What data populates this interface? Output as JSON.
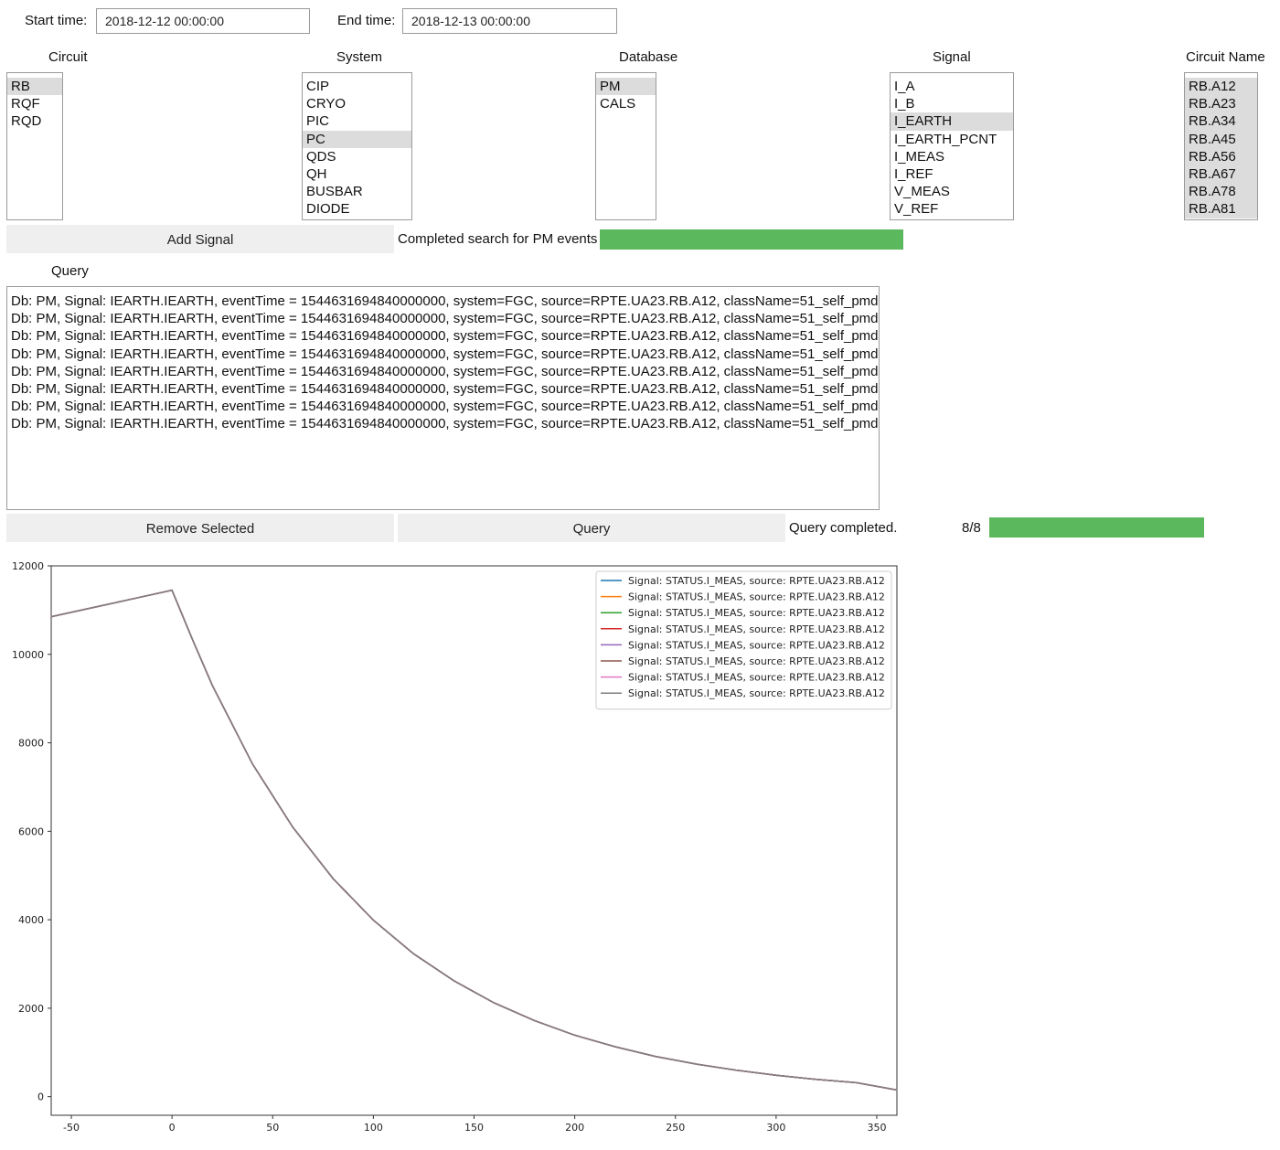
{
  "time_range": {
    "start_label": "Start time:",
    "start_value": "2018-12-12 00:00:00",
    "end_label": "End time:",
    "end_value": "2018-12-13 00:00:00"
  },
  "circuit": {
    "label": "Circuit",
    "options": [
      "RB",
      "RQF",
      "RQD"
    ],
    "selected": [
      0
    ]
  },
  "system": {
    "label": "System",
    "options": [
      "CIP",
      "CRYO",
      "PIC",
      "PC",
      "QDS",
      "QH",
      "BUSBAR",
      "DIODE"
    ],
    "selected": [
      3
    ]
  },
  "database": {
    "label": "Database",
    "options": [
      "PM",
      "CALS"
    ],
    "selected": [
      0
    ]
  },
  "signal": {
    "label": "Signal",
    "options": [
      "I_A",
      "I_B",
      "I_EARTH",
      "I_EARTH_PCNT",
      "I_MEAS",
      "I_REF",
      "V_MEAS",
      "V_REF"
    ],
    "selected": [
      2
    ]
  },
  "circuit_name": {
    "label": "Circuit Name",
    "options": [
      "RB.A12",
      "RB.A23",
      "RB.A34",
      "RB.A45",
      "RB.A56",
      "RB.A67",
      "RB.A78",
      "RB.A81"
    ],
    "selected": [
      0,
      1,
      2,
      3,
      4,
      5,
      6,
      7
    ]
  },
  "add_signal": {
    "label": "Add Signal"
  },
  "search_status": {
    "text": "Completed search for PM events",
    "progress": 1.0,
    "color": "#5cb85c"
  },
  "query_section": {
    "label": "Query",
    "lines": [
      "Db: PM, Signal: IEARTH.IEARTH, eventTime = 1544631694840000000, system=FGC, source=RPTE.UA23.RB.A12, className=51_self_pmd",
      "Db: PM, Signal: IEARTH.IEARTH, eventTime = 1544631694840000000, system=FGC, source=RPTE.UA23.RB.A12, className=51_self_pmd",
      "Db: PM, Signal: IEARTH.IEARTH, eventTime = 1544631694840000000, system=FGC, source=RPTE.UA23.RB.A12, className=51_self_pmd",
      "Db: PM, Signal: IEARTH.IEARTH, eventTime = 1544631694840000000, system=FGC, source=RPTE.UA23.RB.A12, className=51_self_pmd",
      "Db: PM, Signal: IEARTH.IEARTH, eventTime = 1544631694840000000, system=FGC, source=RPTE.UA23.RB.A12, className=51_self_pmd",
      "Db: PM, Signal: IEARTH.IEARTH, eventTime = 1544631694840000000, system=FGC, source=RPTE.UA23.RB.A12, className=51_self_pmd",
      "Db: PM, Signal: IEARTH.IEARTH, eventTime = 1544631694840000000, system=FGC, source=RPTE.UA23.RB.A12, className=51_self_pmd",
      "Db: PM, Signal: IEARTH.IEARTH, eventTime = 1544631694840000000, system=FGC, source=RPTE.UA23.RB.A12, className=51_self_pmd"
    ]
  },
  "remove_selected": {
    "label": "Remove Selected"
  },
  "query_button": {
    "label": "Query"
  },
  "query_status": {
    "text": "Query completed.",
    "count": "8/8",
    "progress": 1.0,
    "color": "#5cb85c"
  },
  "chart_data": {
    "type": "line",
    "title": "",
    "xlabel": "",
    "ylabel": "",
    "xlim": [
      -60,
      360
    ],
    "ylim": [
      -420,
      12000
    ],
    "xticks": [
      -50,
      0,
      50,
      100,
      150,
      200,
      250,
      300,
      350
    ],
    "yticks": [
      0,
      2000,
      4000,
      6000,
      8000,
      10000,
      12000
    ],
    "grid": false,
    "legend_position": "top-right",
    "x": [
      -60,
      -40,
      -20,
      0,
      10,
      20,
      40,
      60,
      80,
      100,
      120,
      140,
      160,
      180,
      200,
      220,
      240,
      260,
      280,
      300,
      320,
      340,
      360
    ],
    "series": [
      {
        "name": "Signal: STATUS.I_MEAS, source: RPTE.UA23.RB.A12",
        "color": "#1f77b4",
        "values": [
          10850,
          11050,
          11250,
          11450,
          10350,
          9300,
          7520,
          6090,
          4930,
          3990,
          3230,
          2620,
          2120,
          1720,
          1390,
          1130,
          910,
          740,
          600,
          485,
          390,
          315,
          150
        ]
      },
      {
        "name": "Signal: STATUS.I_MEAS, source: RPTE.UA23.RB.A12",
        "color": "#ff7f0e",
        "values": [
          10850,
          11050,
          11250,
          11450,
          10350,
          9300,
          7520,
          6090,
          4930,
          3990,
          3230,
          2620,
          2120,
          1720,
          1390,
          1130,
          910,
          740,
          600,
          485,
          390,
          315,
          150
        ]
      },
      {
        "name": "Signal: STATUS.I_MEAS, source: RPTE.UA23.RB.A12",
        "color": "#2ca02c",
        "values": [
          10850,
          11050,
          11250,
          11450,
          10350,
          9300,
          7520,
          6090,
          4930,
          3990,
          3230,
          2620,
          2120,
          1720,
          1390,
          1130,
          910,
          740,
          600,
          485,
          390,
          315,
          150
        ]
      },
      {
        "name": "Signal: STATUS.I_MEAS, source: RPTE.UA23.RB.A12",
        "color": "#d62728",
        "values": [
          10850,
          11050,
          11250,
          11450,
          10350,
          9300,
          7520,
          6090,
          4930,
          3990,
          3230,
          2620,
          2120,
          1720,
          1390,
          1130,
          910,
          740,
          600,
          485,
          390,
          315,
          150
        ]
      },
      {
        "name": "Signal: STATUS.I_MEAS, source: RPTE.UA23.RB.A12",
        "color": "#9467bd",
        "values": [
          10850,
          11050,
          11250,
          11450,
          10350,
          9300,
          7520,
          6090,
          4930,
          3990,
          3230,
          2620,
          2120,
          1720,
          1390,
          1130,
          910,
          740,
          600,
          485,
          390,
          315,
          150
        ]
      },
      {
        "name": "Signal: STATUS.I_MEAS, source: RPTE.UA23.RB.A12",
        "color": "#8c564b",
        "values": [
          10850,
          11050,
          11250,
          11450,
          10350,
          9300,
          7520,
          6090,
          4930,
          3990,
          3230,
          2620,
          2120,
          1720,
          1390,
          1130,
          910,
          740,
          600,
          485,
          390,
          315,
          150
        ]
      },
      {
        "name": "Signal: STATUS.I_MEAS, source: RPTE.UA23.RB.A12",
        "color": "#e377c2",
        "values": [
          10850,
          11050,
          11250,
          11450,
          10350,
          9300,
          7520,
          6090,
          4930,
          3990,
          3230,
          2620,
          2120,
          1720,
          1390,
          1130,
          910,
          740,
          600,
          485,
          390,
          315,
          150
        ]
      },
      {
        "name": "Signal: STATUS.I_MEAS, source: RPTE.UA23.RB.A12",
        "color": "#7f7f7f",
        "values": [
          10850,
          11050,
          11250,
          11450,
          10350,
          9300,
          7520,
          6090,
          4930,
          3990,
          3230,
          2620,
          2120,
          1720,
          1390,
          1130,
          910,
          740,
          600,
          485,
          390,
          315,
          150
        ]
      }
    ]
  }
}
